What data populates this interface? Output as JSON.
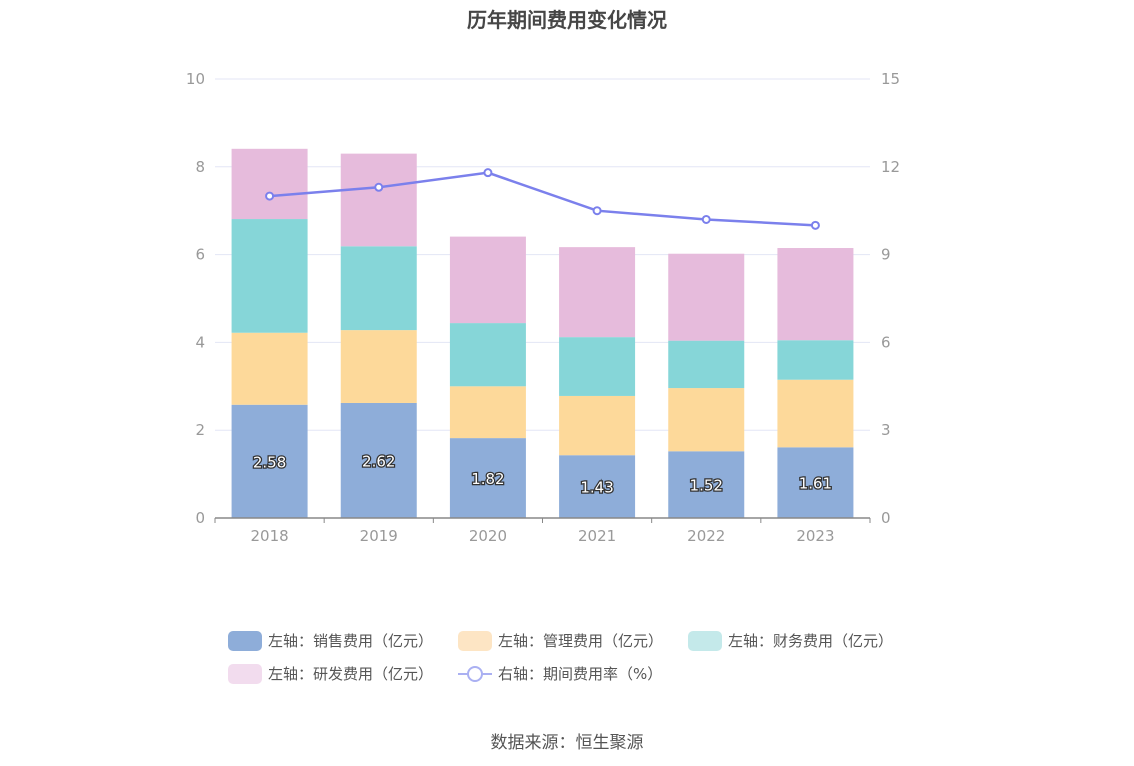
{
  "chart_data": {
    "type": "bar",
    "title": "历年期间费用变化情况",
    "categories": [
      "2018",
      "2019",
      "2020",
      "2021",
      "2022",
      "2023"
    ],
    "left_axis": {
      "ylim": [
        0,
        10
      ],
      "ticks": [
        "0",
        "2",
        "4",
        "6",
        "8",
        "10"
      ]
    },
    "right_axis": {
      "ylim": [
        0,
        15
      ],
      "ticks": [
        "0",
        "3",
        "6",
        "9",
        "12",
        "15"
      ]
    },
    "series": [
      {
        "name": "左轴：销售费用（亿元）",
        "type": "bar",
        "stack": true,
        "axis": "left",
        "color": "#8eadd9",
        "values": [
          2.58,
          2.62,
          1.82,
          1.43,
          1.52,
          1.61
        ],
        "data_labels": [
          "2.58",
          "2.62",
          "1.82",
          "1.43",
          "1.52",
          "1.61"
        ]
      },
      {
        "name": "左轴：管理费用（亿元）",
        "type": "bar",
        "stack": true,
        "axis": "left",
        "color": "#fdd99a",
        "values": [
          1.64,
          1.66,
          1.18,
          1.35,
          1.44,
          1.54
        ]
      },
      {
        "name": "左轴：财务费用（亿元）",
        "type": "bar",
        "stack": true,
        "axis": "left",
        "color": "#86d6d8",
        "values": [
          2.59,
          1.91,
          1.44,
          1.34,
          1.08,
          0.9
        ]
      },
      {
        "name": "左轴：研发费用（亿元）",
        "type": "bar",
        "stack": true,
        "axis": "left",
        "color": "#e6bbdc",
        "values": [
          1.6,
          2.11,
          1.97,
          2.05,
          1.98,
          2.1
        ]
      },
      {
        "name": "右轴：期间费用率（%）",
        "type": "line",
        "axis": "right",
        "color": "#7b80ec",
        "values": [
          11.0,
          11.3,
          11.8,
          10.5,
          10.2,
          10.0
        ]
      }
    ],
    "grid": true,
    "legend_position": "bottom"
  },
  "legend_swatch_colors": [
    "#8eadd9",
    "#fde5c4",
    "#c4e9ea",
    "#f2dcee",
    "#aab0f2"
  ],
  "source": "数据来源：恒生聚源"
}
